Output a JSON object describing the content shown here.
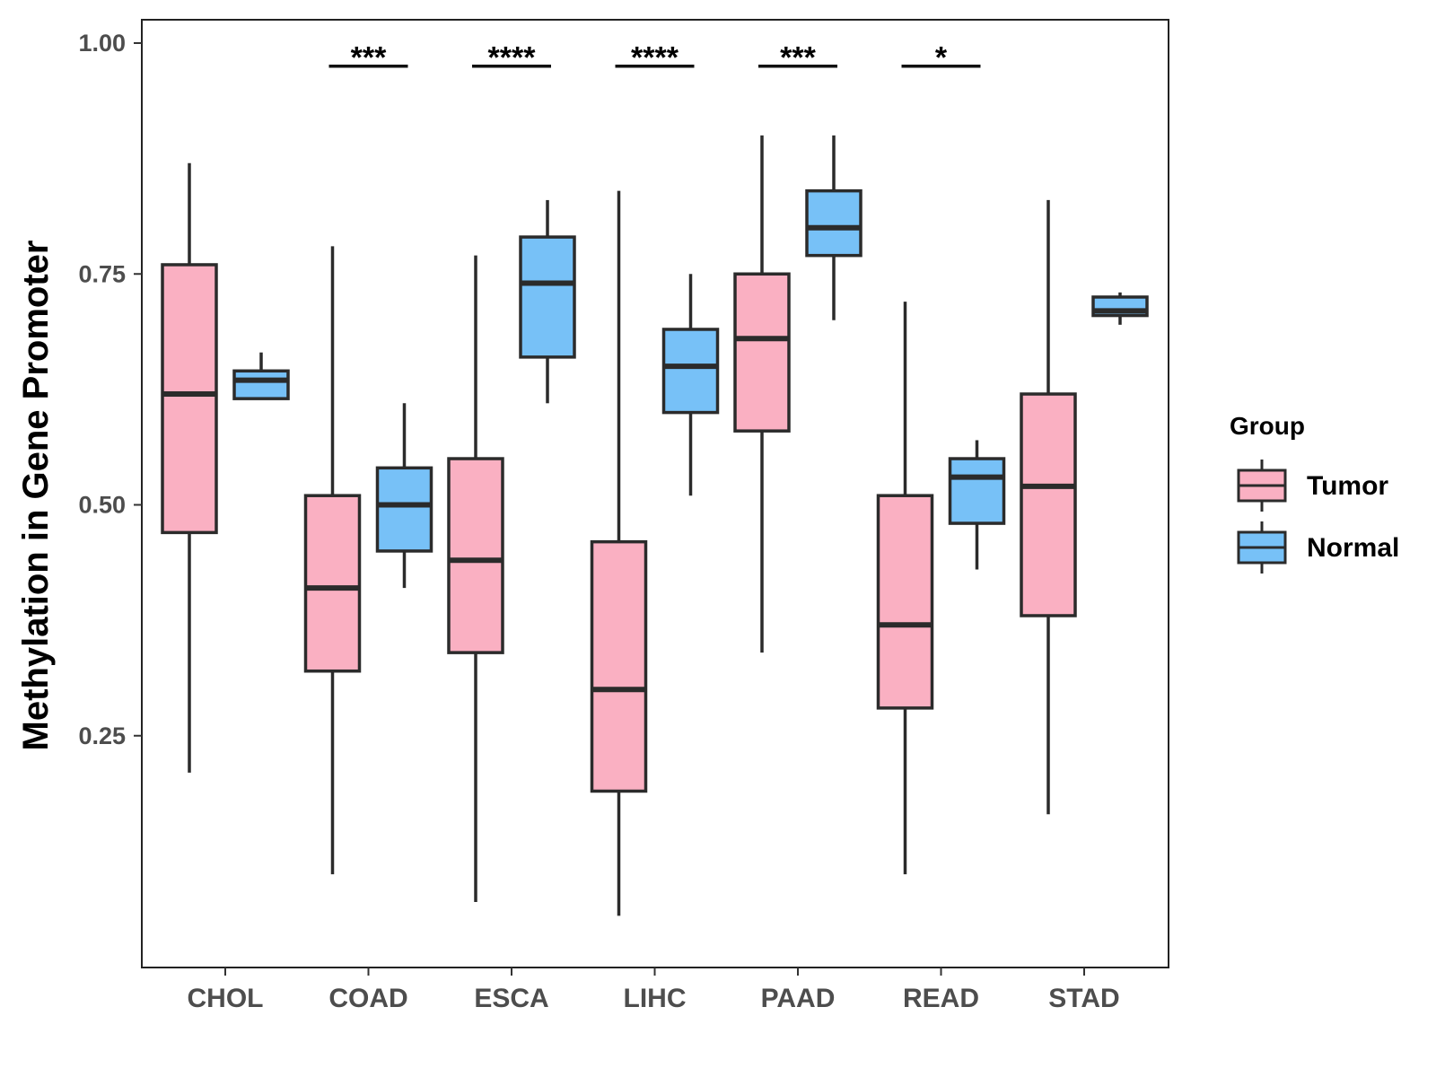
{
  "chart_data": {
    "type": "boxplot",
    "ylabel": "Methylation in Gene Promoter",
    "xlabel": "",
    "ylim": [
      0.0,
      1.025
    ],
    "yticks": [
      0.25,
      0.5,
      0.75,
      1.0
    ],
    "ytick_labels": [
      "0.25",
      "0.50",
      "0.75",
      "1.00"
    ],
    "grid": false,
    "categories": [
      "CHOL",
      "COAD",
      "ESCA",
      "LIHC",
      "PAAD",
      "READ",
      "STAD"
    ],
    "legend": {
      "title": "Group",
      "position": "right",
      "entries": [
        "Tumor",
        "Normal"
      ]
    },
    "colors": {
      "Tumor": "#fab0c2",
      "Normal": "#77c1f7",
      "stroke": "#2b2b2b"
    },
    "series": [
      {
        "name": "Tumor",
        "boxes": [
          {
            "category": "CHOL",
            "whisker_low": 0.21,
            "q1": 0.47,
            "median": 0.62,
            "q3": 0.76,
            "whisker_high": 0.87
          },
          {
            "category": "COAD",
            "whisker_low": 0.1,
            "q1": 0.32,
            "median": 0.41,
            "q3": 0.51,
            "whisker_high": 0.78
          },
          {
            "category": "ESCA",
            "whisker_low": 0.07,
            "q1": 0.34,
            "median": 0.44,
            "q3": 0.55,
            "whisker_high": 0.77
          },
          {
            "category": "LIHC",
            "whisker_low": 0.055,
            "q1": 0.19,
            "median": 0.3,
            "q3": 0.46,
            "whisker_high": 0.84
          },
          {
            "category": "PAAD",
            "whisker_low": 0.34,
            "q1": 0.58,
            "median": 0.68,
            "q3": 0.75,
            "whisker_high": 0.9
          },
          {
            "category": "READ",
            "whisker_low": 0.1,
            "q1": 0.28,
            "median": 0.37,
            "q3": 0.51,
            "whisker_high": 0.72
          },
          {
            "category": "STAD",
            "whisker_low": 0.165,
            "q1": 0.38,
            "median": 0.52,
            "q3": 0.62,
            "whisker_high": 0.83
          }
        ]
      },
      {
        "name": "Normal",
        "boxes": [
          {
            "category": "CHOL",
            "whisker_low": 0.615,
            "q1": 0.615,
            "median": 0.635,
            "q3": 0.645,
            "whisker_high": 0.665
          },
          {
            "category": "COAD",
            "whisker_low": 0.41,
            "q1": 0.45,
            "median": 0.5,
            "q3": 0.54,
            "whisker_high": 0.61
          },
          {
            "category": "ESCA",
            "whisker_low": 0.61,
            "q1": 0.66,
            "median": 0.74,
            "q3": 0.79,
            "whisker_high": 0.83
          },
          {
            "category": "LIHC",
            "whisker_low": 0.51,
            "q1": 0.6,
            "median": 0.65,
            "q3": 0.69,
            "whisker_high": 0.75
          },
          {
            "category": "PAAD",
            "whisker_low": 0.7,
            "q1": 0.77,
            "median": 0.8,
            "q3": 0.84,
            "whisker_high": 0.9
          },
          {
            "category": "READ",
            "whisker_low": 0.43,
            "q1": 0.48,
            "median": 0.53,
            "q3": 0.55,
            "whisker_high": 0.57
          },
          {
            "category": "STAD",
            "whisker_low": 0.695,
            "q1": 0.705,
            "median": 0.71,
            "q3": 0.725,
            "whisker_high": 0.73
          }
        ]
      }
    ],
    "annotations": [
      {
        "category": "COAD",
        "text": "***",
        "y": 0.975
      },
      {
        "category": "ESCA",
        "text": "****",
        "y": 0.975
      },
      {
        "category": "LIHC",
        "text": "****",
        "y": 0.975
      },
      {
        "category": "PAAD",
        "text": "***",
        "y": 0.975
      },
      {
        "category": "READ",
        "text": "*",
        "y": 0.975
      }
    ]
  }
}
